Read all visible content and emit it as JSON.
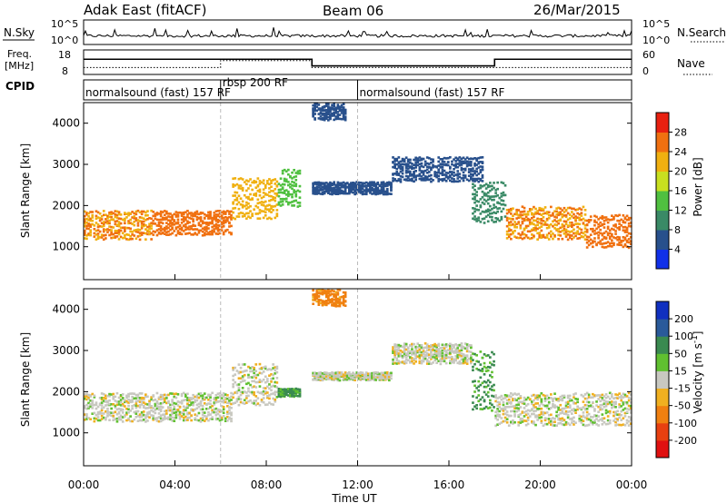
{
  "header": {
    "title": "Adak East (fitACF)",
    "beam": "Beam 06",
    "date": "26/Mar/2015"
  },
  "nsky": {
    "label": "N.Sky",
    "tick_top": "10^5",
    "tick_bottom": "10^0",
    "right_label": "N.Search",
    "right_tick_top": "10^5",
    "right_tick_bottom": "10^0"
  },
  "freq": {
    "label_line1": "Freq.",
    "label_line2": "[MHz]",
    "tick_top": "18",
    "tick_bottom": "8",
    "right_label": "Nave",
    "right_tick_top": "60",
    "right_tick_bottom": "0",
    "steps": [
      {
        "start": 0,
        "end": 10,
        "mhz": 14.2
      },
      {
        "start": 10,
        "end": 18,
        "mhz": 11.5
      },
      {
        "start": 18,
        "end": 24,
        "mhz": 14.2
      }
    ],
    "nave_steps": [
      {
        "start": 0,
        "end": 6,
        "nave": 17
      },
      {
        "start": 6,
        "end": 10,
        "nave": 34
      },
      {
        "start": 10,
        "end": 12,
        "nave": 17
      },
      {
        "start": 12,
        "end": 24,
        "nave": 17
      }
    ]
  },
  "cpid": {
    "label": "CPID",
    "segments": [
      {
        "label": "normalsound (fast) 157 RF",
        "start": 0,
        "end": 6
      },
      {
        "label": "rbsp 200 RF",
        "start": 6,
        "end": 12
      },
      {
        "label": "normalsound (fast) 157 RF",
        "start": 12,
        "end": 24
      }
    ]
  },
  "power_panel": {
    "ylabel": "Slant Range [km]",
    "yticks": [
      "1000",
      "2000",
      "3000",
      "4000"
    ],
    "cbar_label": "Power [dB]",
    "cbar_ticks": [
      "4",
      "8",
      "12",
      "16",
      "20",
      "24",
      "28"
    ],
    "colors": [
      "#1030e8",
      "#28508c",
      "#3a8a66",
      "#50c040",
      "#c8e020",
      "#f0b010",
      "#f07010",
      "#e82010"
    ]
  },
  "velocity_panel": {
    "ylabel": "Slant Range [km]",
    "yticks": [
      "1000",
      "2000",
      "3000",
      "4000"
    ],
    "cbar_label": "Velocity [m s^-1]",
    "cbar_ticks": [
      "200",
      "100",
      "50",
      "15",
      "-15",
      "-50",
      "-100",
      "-200"
    ],
    "colors": [
      "#1030c0",
      "#2a5a9a",
      "#3a8a50",
      "#60c030",
      "#c8c8c0",
      "#f0b020",
      "#f08010",
      "#e84010",
      "#e01010"
    ]
  },
  "xaxis": {
    "label": "Time UT",
    "ticks": [
      "00:00",
      "04:00",
      "08:00",
      "12:00",
      "16:00",
      "20:00",
      "00:00"
    ]
  },
  "chart_data": [
    {
      "type": "heatmap",
      "title": "",
      "xlabel": "Time UT",
      "ylabel": "Slant Range [km]",
      "xlim_hours": [
        0,
        24
      ],
      "ylim_km": [
        200,
        4500
      ],
      "zlabel": "Power [dB]",
      "zlim": [
        0,
        32
      ],
      "bands": [
        {
          "t0": 0,
          "t1": 3,
          "r0": 1200,
          "r1": 1900,
          "z": 24
        },
        {
          "t0": 3,
          "t1": 6.5,
          "r0": 1300,
          "r1": 1900,
          "z": 26
        },
        {
          "t0": 6.5,
          "t1": 8.5,
          "r0": 1700,
          "r1": 2700,
          "z": 22
        },
        {
          "t0": 8.5,
          "t1": 9.5,
          "r0": 2000,
          "r1": 2900,
          "z": 14
        },
        {
          "t0": 10,
          "t1": 11.5,
          "r0": 4100,
          "r1": 4500,
          "z": 6
        },
        {
          "t0": 10,
          "t1": 13.5,
          "r0": 2300,
          "r1": 2600,
          "z": 6
        },
        {
          "t0": 13.5,
          "t1": 17.5,
          "r0": 2600,
          "r1": 3200,
          "z": 6
        },
        {
          "t0": 17,
          "t1": 18.5,
          "r0": 1600,
          "r1": 2600,
          "z": 10
        },
        {
          "t0": 18.5,
          "t1": 22,
          "r0": 1200,
          "r1": 2000,
          "z": 24
        },
        {
          "t0": 22,
          "t1": 24,
          "r0": 1000,
          "r1": 1800,
          "z": 26
        }
      ]
    },
    {
      "type": "heatmap",
      "title": "",
      "xlabel": "Time UT",
      "ylabel": "Slant Range [km]",
      "xlim_hours": [
        0,
        24
      ],
      "ylim_km": [
        200,
        4500
      ],
      "zlabel": "Velocity [m s^-1]",
      "zlim": [
        -200,
        200
      ],
      "bands": [
        {
          "t0": 0,
          "t1": 6.5,
          "r0": 1300,
          "r1": 2000,
          "z": 0
        },
        {
          "t0": 6.5,
          "t1": 8.5,
          "r0": 1700,
          "r1": 2700,
          "z": 0
        },
        {
          "t0": 8.5,
          "t1": 9.5,
          "r0": 1900,
          "r1": 2100,
          "z": 60
        },
        {
          "t0": 10,
          "t1": 11.5,
          "r0": 4100,
          "r1": 4500,
          "z": -70
        },
        {
          "t0": 10,
          "t1": 13.5,
          "r0": 2300,
          "r1": 2500,
          "z": 0
        },
        {
          "t0": 13.5,
          "t1": 17,
          "r0": 2700,
          "r1": 3200,
          "z": 0
        },
        {
          "t0": 17,
          "t1": 18,
          "r0": 1500,
          "r1": 3000,
          "z": 60
        },
        {
          "t0": 18,
          "t1": 24,
          "r0": 1200,
          "r1": 2000,
          "z": 0
        }
      ]
    }
  ]
}
